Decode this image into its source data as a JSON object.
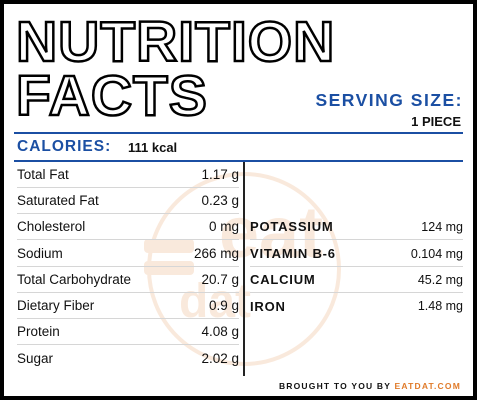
{
  "title": {
    "line1": "NUTRITION",
    "line2": "FACTS"
  },
  "serving": {
    "label": "SERVING SIZE:",
    "value": "1 PIECE"
  },
  "calories": {
    "label": "CALORIES:",
    "value": "111 kcal"
  },
  "nutrients_left": [
    {
      "name": "Total Fat",
      "value": "1.17 g"
    },
    {
      "name": "Saturated Fat",
      "value": "0.23 g"
    },
    {
      "name": "Cholesterol",
      "value": "0 mg"
    },
    {
      "name": "Sodium",
      "value": "266 mg"
    },
    {
      "name": "Total Carbohydrate",
      "value": "20.7 g"
    },
    {
      "name": "Dietary Fiber",
      "value": "0.9 g"
    },
    {
      "name": "Protein",
      "value": "4.08 g"
    },
    {
      "name": "Sugar",
      "value": "2.02 g"
    }
  ],
  "nutrients_right": [
    {
      "name": "POTASSIUM",
      "value": "124 mg"
    },
    {
      "name": "VITAMIN B-6",
      "value": "0.104 mg"
    },
    {
      "name": "CALCIUM",
      "value": "45.2 mg"
    },
    {
      "name": "IRON",
      "value": "1.48 mg"
    }
  ],
  "watermark": {
    "text": "eat",
    "subtext": "dat"
  },
  "footer": {
    "prefix": "BROUGHT TO YOU BY",
    "brand": "EATDAT.COM"
  },
  "colors": {
    "accent_blue": "#1b4fa3",
    "brand_orange": "#e07b2a",
    "frame": "#000000"
  }
}
